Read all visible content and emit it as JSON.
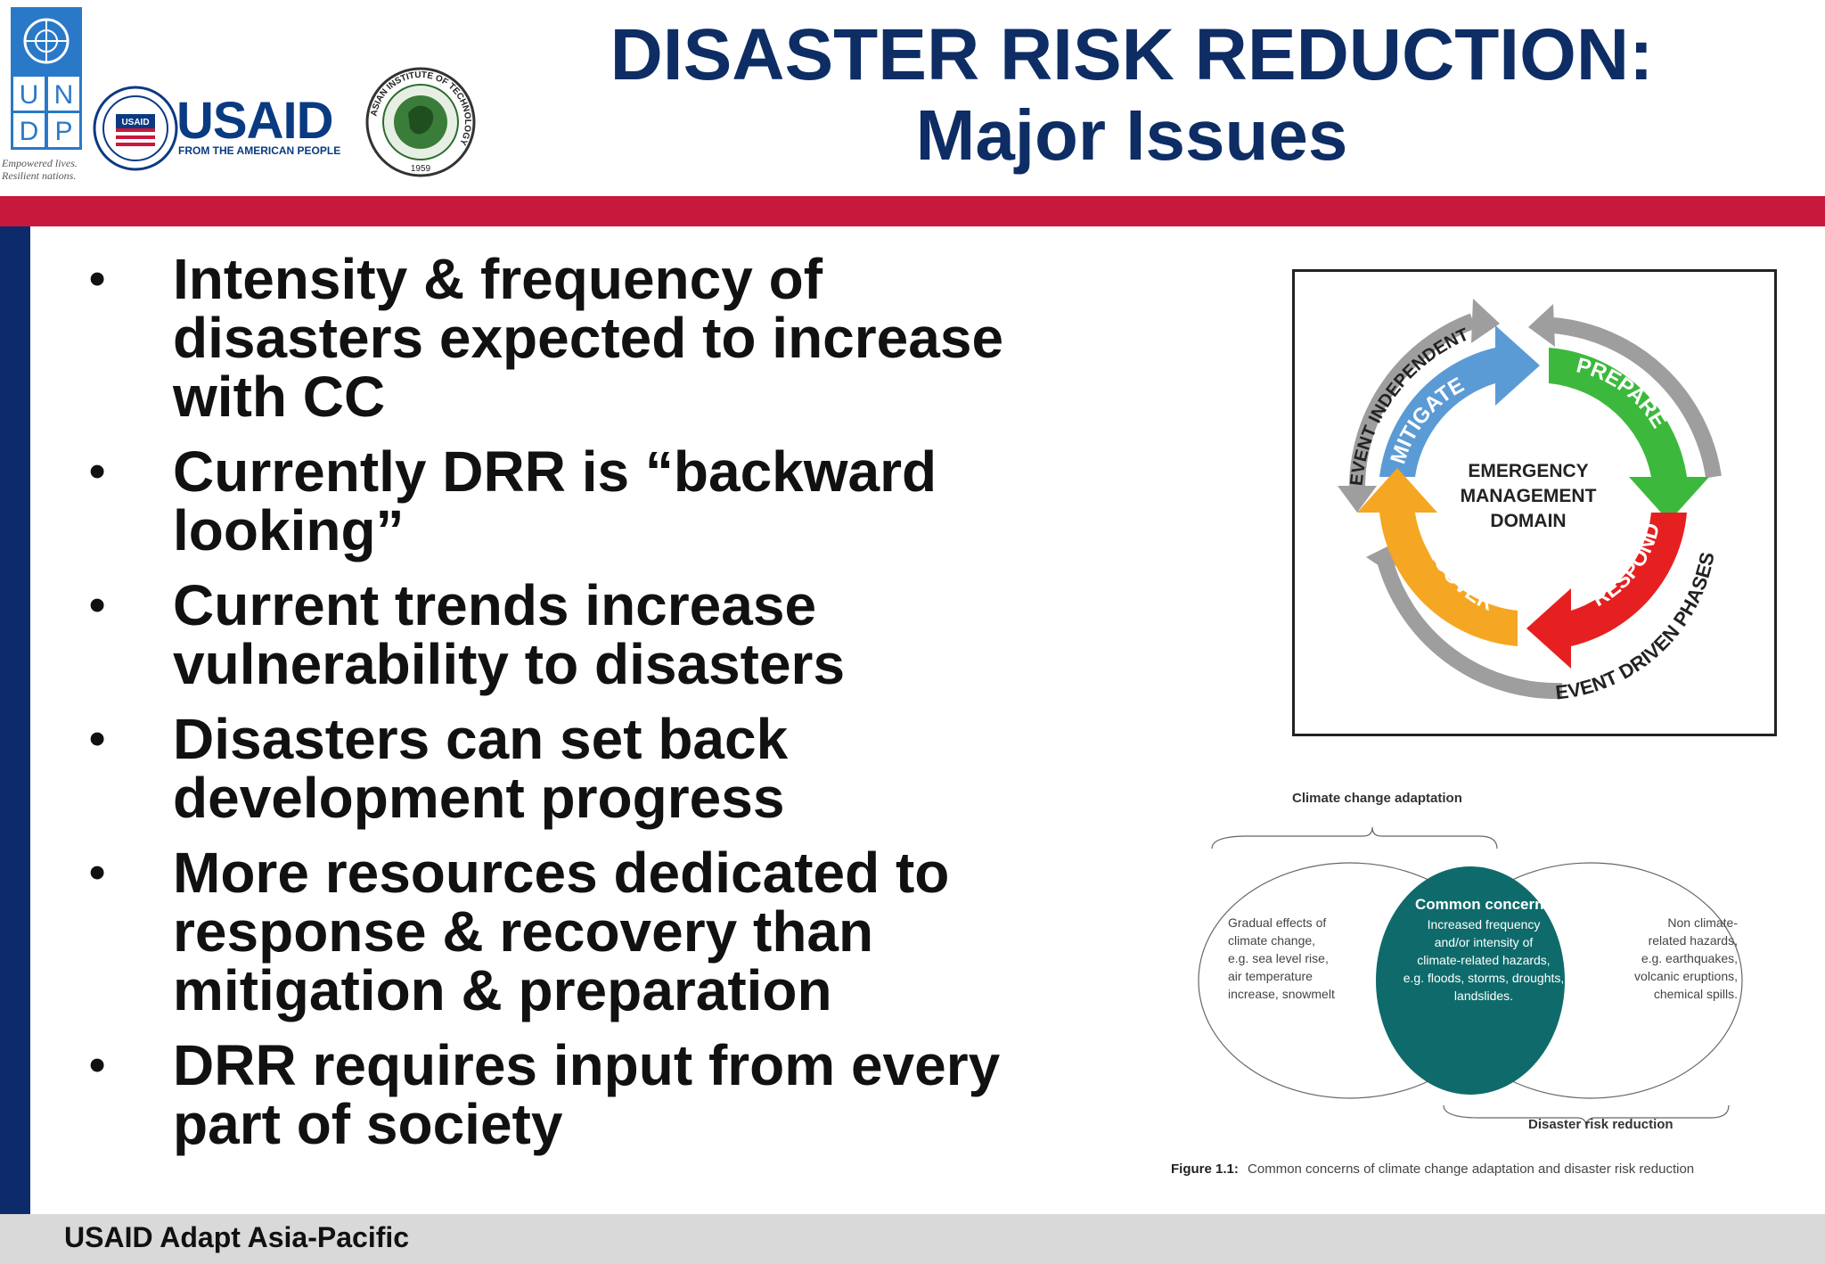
{
  "header": {
    "title_line1": "DISASTER RISK REDUCTION:",
    "title_line2": "Major Issues"
  },
  "logos": {
    "undp": {
      "letters": [
        "U",
        "N",
        "D",
        "P"
      ],
      "tagline_line1": "Empowered lives.",
      "tagline_line2": "Resilient nations."
    },
    "usaid": {
      "word": "USAID",
      "sub": "FROM THE AMERICAN PEOPLE",
      "seal_text": "USAID"
    },
    "ait": {
      "ring_text": "ASIAN INSTITUTE OF TECHNOLOGY",
      "year": "1959"
    }
  },
  "bullets": [
    {
      "lines": [
        "Intensity & frequency of",
        "disasters expected to increase",
        "with CC"
      ]
    },
    {
      "lines": [
        "Currently DRR is “backward",
        "looking”"
      ]
    },
    {
      "lines": [
        "Current trends increase",
        "vulnerability to disasters"
      ]
    },
    {
      "lines": [
        "Disasters can set back",
        "development progress"
      ]
    },
    {
      "lines": [
        "More resources dedicated to",
        "response & recovery than",
        "mitigation & preparation"
      ]
    },
    {
      "lines": [
        "DRR requires input from every",
        "part of society"
      ]
    }
  ],
  "cycle_diagram": {
    "center_lines": [
      "EMERGENCY",
      "MANAGEMENT",
      "DOMAIN"
    ],
    "mitigate": "MITIGATE",
    "prepare": "PREPARE",
    "respond": "RESPOND",
    "recover": "RECOVER",
    "outer_independent": "EVENT INDEPENDENT",
    "outer_driven": "EVENT DRIVEN PHASES",
    "colors": {
      "mitigate": "#5b9bd5",
      "prepare": "#3cb93c",
      "respond": "#e62020",
      "recover": "#f5a623",
      "outer": "#9e9e9e"
    }
  },
  "venn_diagram": {
    "top_label": "Climate change adaptation",
    "bottom_label": "Disaster risk reduction",
    "left_lines": [
      "Gradual effects of",
      "climate change,",
      "e.g. sea level rise,",
      "air temperature",
      "increase, snowmelt"
    ],
    "center_title": "Common concerns",
    "center_lines": [
      "Increased frequency",
      "and/or intensity of",
      "climate-related hazards,",
      "e.g. floods, storms, droughts,",
      "landslides."
    ],
    "right_lines": [
      "Non climate-",
      "related hazards,",
      "e.g. earthquakes,",
      "volcanic eruptions,",
      "chemical spills."
    ],
    "caption_bold": "Figure 1.1:",
    "caption_text": "Common concerns of climate change adaptation and disaster risk reduction",
    "colors": {
      "overlap": "#0f6b6b"
    }
  },
  "footer": {
    "text": "USAID Adapt Asia-Pacific"
  }
}
